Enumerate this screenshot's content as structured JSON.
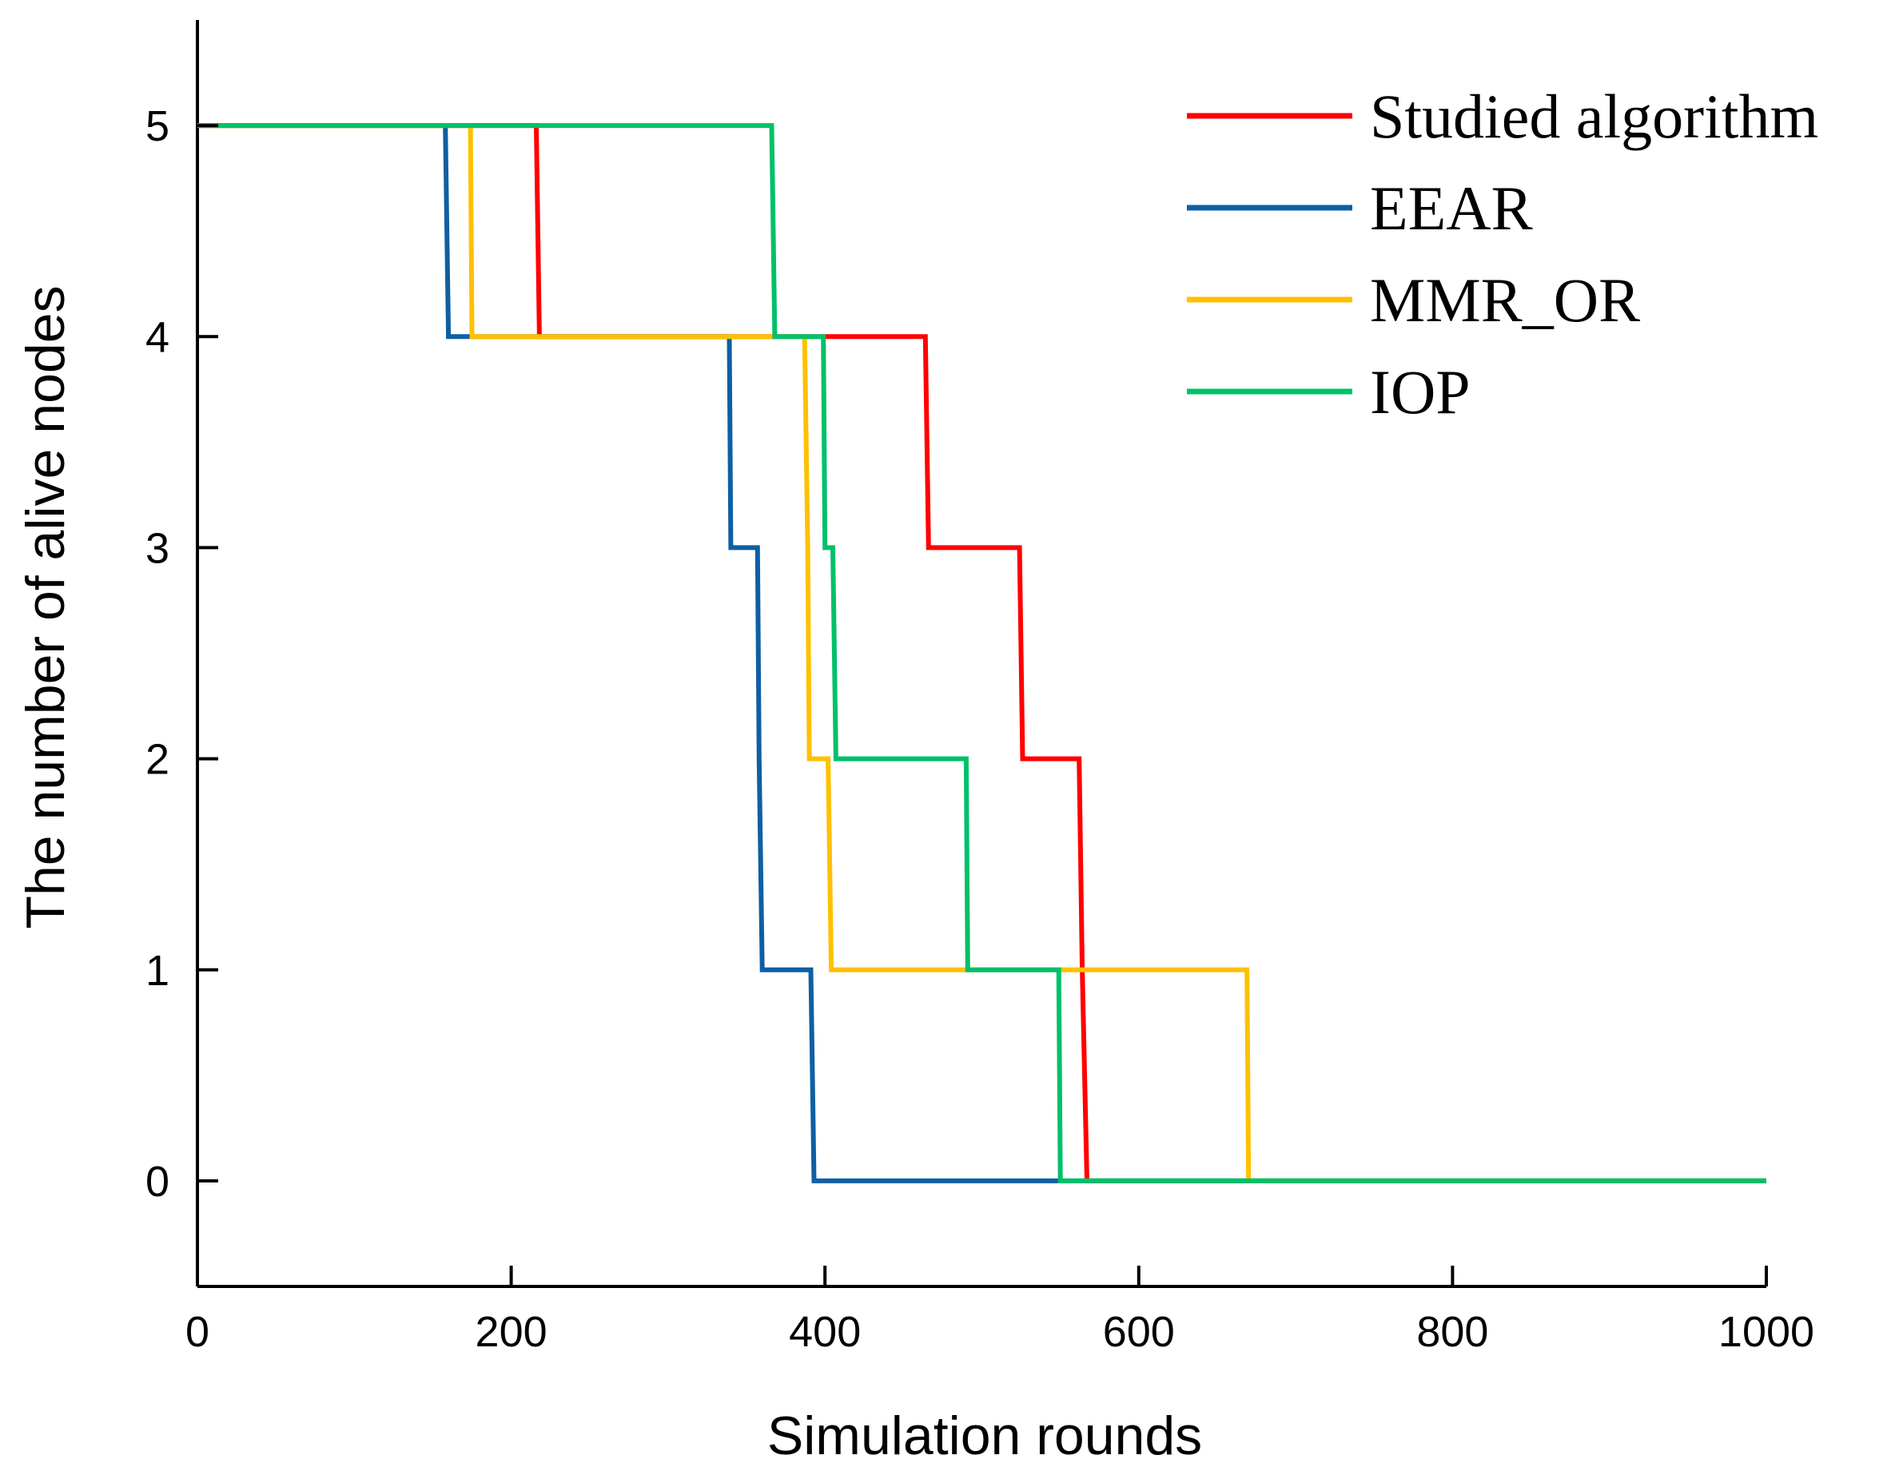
{
  "chart_data": {
    "type": "line",
    "title": "",
    "xlabel": "Simulation rounds",
    "ylabel": "The number of alive nodes",
    "xlim": [
      0,
      1000
    ],
    "ylim": [
      -0.5,
      5.5
    ],
    "xticks": [
      0,
      200,
      400,
      600,
      800,
      1000
    ],
    "yticks": [
      0,
      1,
      2,
      3,
      4,
      5
    ],
    "xtick_labels": [
      "0",
      "200",
      "400",
      "600",
      "800",
      "1000"
    ],
    "ytick_labels": [
      "0",
      "1",
      "2",
      "3",
      "4",
      "5"
    ],
    "grid": false,
    "legend_position": "top-right",
    "series": [
      {
        "name": "Studied algorithm",
        "color": "#ff0000",
        "points": [
          [
            0,
            5
          ],
          [
            216,
            5
          ],
          [
            218,
            4
          ],
          [
            464,
            4
          ],
          [
            466,
            3
          ],
          [
            524,
            3
          ],
          [
            526,
            2
          ],
          [
            562,
            2
          ],
          [
            564,
            1
          ],
          [
            567,
            0
          ],
          [
            1000,
            0
          ]
        ]
      },
      {
        "name": "EEAR",
        "color": "#0e5fa3",
        "points": [
          [
            0,
            5
          ],
          [
            158,
            5
          ],
          [
            160,
            4
          ],
          [
            339,
            4
          ],
          [
            340,
            3
          ],
          [
            357,
            3
          ],
          [
            358,
            2
          ],
          [
            360,
            1
          ],
          [
            391,
            1
          ],
          [
            393,
            0
          ],
          [
            1000,
            0
          ]
        ]
      },
      {
        "name": "MMR_OR",
        "color": "#ffc000",
        "points": [
          [
            0,
            5
          ],
          [
            174,
            5
          ],
          [
            175,
            4
          ],
          [
            387,
            4
          ],
          [
            389,
            3
          ],
          [
            390,
            2
          ],
          [
            402,
            2
          ],
          [
            404,
            1
          ],
          [
            669,
            1
          ],
          [
            670,
            0
          ],
          [
            1000,
            0
          ]
        ]
      },
      {
        "name": "IOP",
        "color": "#00c06a",
        "points": [
          [
            0,
            5
          ],
          [
            366,
            5
          ],
          [
            368,
            4
          ],
          [
            399,
            4
          ],
          [
            400,
            3
          ],
          [
            405,
            3
          ],
          [
            407,
            2
          ],
          [
            490,
            2
          ],
          [
            491,
            1
          ],
          [
            549,
            1
          ],
          [
            550,
            0
          ],
          [
            1000,
            0
          ]
        ]
      }
    ]
  }
}
